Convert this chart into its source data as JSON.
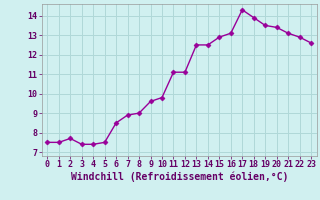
{
  "x": [
    0,
    1,
    2,
    3,
    4,
    5,
    6,
    7,
    8,
    9,
    10,
    11,
    12,
    13,
    14,
    15,
    16,
    17,
    18,
    19,
    20,
    21,
    22,
    23
  ],
  "y": [
    7.5,
    7.5,
    7.7,
    7.4,
    7.4,
    7.5,
    8.5,
    8.9,
    9.0,
    9.6,
    9.8,
    11.1,
    11.1,
    12.5,
    12.5,
    12.9,
    13.1,
    14.3,
    13.9,
    13.5,
    13.4,
    13.1,
    12.9,
    12.6
  ],
  "line_color": "#990099",
  "marker": "D",
  "markersize": 2.5,
  "linewidth": 1.0,
  "bg_color": "#d0f0f0",
  "grid_color": "#b0d8d8",
  "xlabel": "Windchill (Refroidissement éolien,°C)",
  "xlabel_fontsize": 7,
  "tick_fontsize": 6,
  "ylim": [
    6.8,
    14.6
  ],
  "xlim": [
    -0.5,
    23.5
  ],
  "yticks": [
    7,
    8,
    9,
    10,
    11,
    12,
    13,
    14
  ],
  "xticks": [
    0,
    1,
    2,
    3,
    4,
    5,
    6,
    7,
    8,
    9,
    10,
    11,
    12,
    13,
    14,
    15,
    16,
    17,
    18,
    19,
    20,
    21,
    22,
    23
  ]
}
